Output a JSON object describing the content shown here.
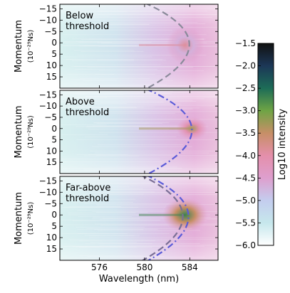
{
  "chart_data": [
    {
      "type": "heatmap",
      "panel_label": "Below\nthreshold",
      "ylabel": "Momentum",
      "ylabel_unit": "(10⁻²⁹Ns)",
      "ylim": [
        -17,
        20
      ],
      "yticks": [
        -15,
        -10,
        -5,
        0,
        5,
        10,
        15
      ],
      "xlim": [
        572.5,
        586.5
      ],
      "xticks": [
        576,
        580,
        584
      ],
      "peak": {
        "x_nm": 583.6,
        "y_momentum": 1,
        "log10_intensity": -3.9
      },
      "vertex_nm": 585.4,
      "curve_style": "dashed"
    },
    {
      "type": "heatmap",
      "panel_label": "Above\nthreshold",
      "ylabel": "Momentum",
      "ylabel_unit": "(10⁻²⁹Ns)",
      "ylim": [
        -17,
        20
      ],
      "yticks": [
        -15,
        -10,
        -5,
        0,
        5,
        10,
        15
      ],
      "xlim": [
        572.5,
        586.5
      ],
      "xticks": [
        576,
        580,
        584
      ],
      "peak": {
        "x_nm": 584.2,
        "y_momentum": 0,
        "log10_intensity": -3.3
      },
      "vertex_nm": 585.6,
      "curve_style": "dash-dot"
    },
    {
      "type": "heatmap",
      "panel_label": "Far-above\nthreshold",
      "ylabel": "Momentum",
      "ylabel_unit": "(10⁻²⁹Ns)",
      "ylim": [
        -17,
        20
      ],
      "yticks": [
        -15,
        -10,
        -5,
        0,
        5,
        10,
        15
      ],
      "xlim": [
        572.5,
        586.5
      ],
      "xticks": [
        576,
        580,
        584
      ],
      "xlabel": "Wavelength (nm)",
      "peak": {
        "x_nm": 583.6,
        "y_momentum": 0,
        "log10_intensity": -2.7
      },
      "vertex_nm": 585.0,
      "curve_style": "dashed + dash-dot"
    },
    {
      "type": "colorbar",
      "label": "Log10 intensity",
      "range": [
        -6.0,
        -1.5
      ],
      "ticks": [
        "-1.5",
        "-2.0",
        "-2.5",
        "-3.0",
        "-3.5",
        "-4.0",
        "-4.5",
        "-5.0",
        "-5.5",
        "-6.0"
      ],
      "colors": [
        "#ffffff",
        "#c6e7ec",
        "#c4cdee",
        "#de9fce",
        "#e48fab",
        "#c78f67",
        "#6fa445",
        "#1d6c57",
        "#1c3757",
        "#111111"
      ]
    }
  ]
}
